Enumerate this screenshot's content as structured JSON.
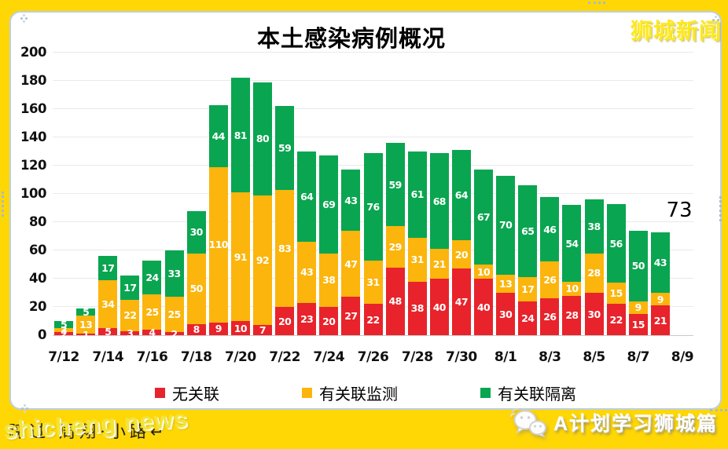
{
  "page": {
    "background_color": "#FFD705",
    "chart_box_border_color": "#BCCFE7"
  },
  "brand": {
    "label": "狮城新闻",
    "color": "#FDE81C"
  },
  "watermark": {
    "yellow_text": "shicheng news",
    "background_text": "踩过·周翔·小路↵"
  },
  "footer": {
    "icon": "wechat-icon",
    "label": "A计划学习狮城篇"
  },
  "chart_data": {
    "type": "bar",
    "stacked": true,
    "title": "本土感染病例概况",
    "xlabel": "",
    "ylabel": "",
    "ylim": [
      0,
      200
    ],
    "y_ticks": [
      0,
      20,
      40,
      60,
      80,
      100,
      120,
      140,
      160,
      180,
      200
    ],
    "grid": true,
    "legend_position": "bottom",
    "categories": [
      "7/12",
      "7/13",
      "7/14",
      "7/15",
      "7/16",
      "7/17",
      "7/18",
      "7/19",
      "7/20",
      "7/21",
      "7/22",
      "7/23",
      "7/24",
      "7/25",
      "7/26",
      "7/27",
      "7/28",
      "7/29",
      "7/30",
      "7/31",
      "8/1",
      "8/2",
      "8/3",
      "8/4",
      "8/5",
      "8/6",
      "8/7",
      "8/8"
    ],
    "x_tick_labels": [
      "7/12",
      "7/14",
      "7/16",
      "7/18",
      "7/20",
      "7/22",
      "7/24",
      "7/26",
      "7/28",
      "7/30",
      "8/1",
      "8/3",
      "8/5",
      "8/7",
      "8/9"
    ],
    "series": [
      {
        "name": "无关联",
        "color": "#E8232B",
        "values": [
          2,
          1,
          5,
          3,
          4,
          2,
          8,
          9,
          10,
          7,
          20,
          23,
          20,
          27,
          22,
          48,
          38,
          40,
          47,
          40,
          30,
          24,
          26,
          28,
          30,
          22,
          15,
          21
        ]
      },
      {
        "name": "有关联监测",
        "color": "#FBB50D",
        "values": [
          3,
          13,
          34,
          22,
          25,
          25,
          50,
          110,
          91,
          92,
          83,
          43,
          38,
          47,
          31,
          29,
          31,
          21,
          20,
          10,
          13,
          17,
          26,
          10,
          28,
          15,
          9,
          9
        ]
      },
      {
        "name": "有关联隔离",
        "color": "#0AA550",
        "values": [
          5,
          5,
          17,
          17,
          24,
          33,
          30,
          44,
          81,
          80,
          59,
          64,
          69,
          43,
          76,
          59,
          61,
          68,
          64,
          67,
          70,
          65,
          46,
          54,
          38,
          56,
          50,
          43
        ]
      }
    ],
    "totals": [
      10,
      19,
      56,
      42,
      53,
      60,
      88,
      163,
      182,
      179,
      162,
      130,
      127,
      117,
      129,
      136,
      130,
      129,
      131,
      117,
      113,
      106,
      98,
      92,
      96,
      93,
      74,
      73
    ],
    "annotation": {
      "text": "73",
      "category": "8/8"
    }
  }
}
